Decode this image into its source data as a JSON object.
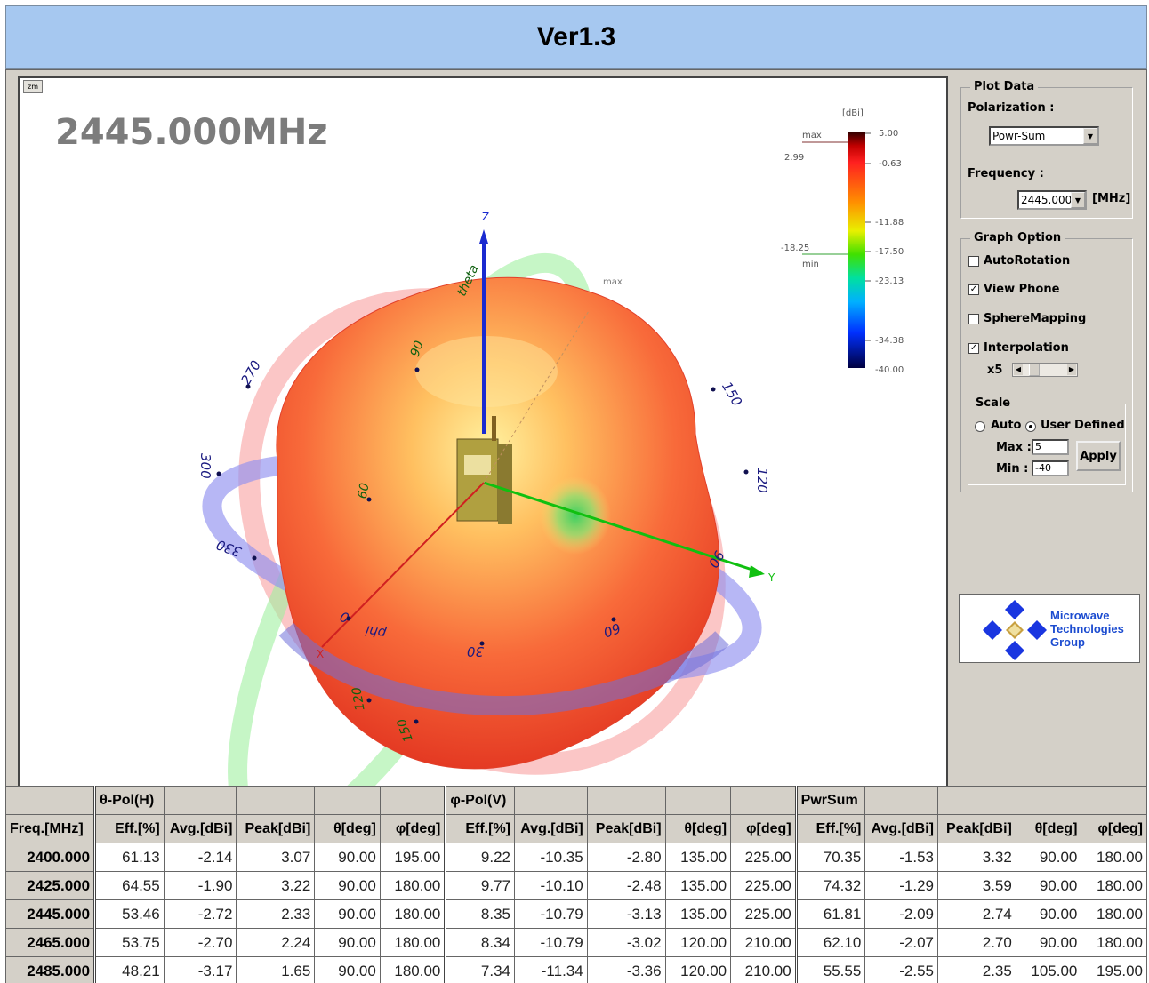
{
  "title": "Ver1.3",
  "plot": {
    "zm_label": "zm",
    "frequency_display": "2445.000MHz",
    "axes": {
      "z": "Z",
      "y": "Y",
      "x": "X"
    },
    "ring_labels": {
      "phi": "phi",
      "theta": "theta",
      "blue": [
        "270",
        "300",
        "330",
        "30",
        "60",
        "90",
        "120",
        "150",
        "0"
      ],
      "green": [
        "90",
        "60",
        "120",
        "150"
      ]
    },
    "max_marker": "max",
    "colorbar": {
      "unit": "[dBi]",
      "ticks": [
        "5.00",
        "-0.63",
        "-11.88",
        "-17.50",
        "-23.13",
        "-34.38",
        "-40.00"
      ],
      "max_label": "max",
      "max_value": "2.99",
      "min_label": "min",
      "min_value": "-18.25"
    }
  },
  "panel": {
    "plot_data": {
      "legend": "Plot Data",
      "polarization_label": "Polarization :",
      "polarization_value": "Powr-Sum",
      "frequency_label": "Frequency :",
      "frequency_value": "2445.000",
      "frequency_unit": "[MHz]"
    },
    "graph_option": {
      "legend": "Graph Option",
      "auto_rotation": {
        "label": "AutoRotation",
        "checked": false
      },
      "view_phone": {
        "label": "View Phone",
        "checked": true
      },
      "sphere_mapping": {
        "label": "SphereMapping",
        "checked": false
      },
      "interpolation": {
        "label": "Interpolation",
        "checked": true
      },
      "interp_factor": "x5"
    },
    "scale": {
      "legend": "Scale",
      "auto_label": "Auto",
      "user_defined_label": "User Defined",
      "max_label": "Max :",
      "max_value": "5",
      "min_label": "Min :",
      "min_value": "-40",
      "apply_label": "Apply"
    },
    "logo": {
      "line1": "Microwave",
      "line2": "Technologies",
      "line3": "Group"
    }
  },
  "table": {
    "group_headers": [
      "θ-Pol(H)",
      "φ-Pol(V)",
      "PwrSum"
    ],
    "columns": [
      "Freq.[MHz]",
      "Eff.[%]",
      "Avg.[dBi]",
      "Peak[dBi]",
      "θ[deg]",
      "φ[deg]",
      "Eff.[%]",
      "Avg.[dBi]",
      "Peak[dBi]",
      "θ[deg]",
      "φ[deg]",
      "Eff.[%]",
      "Avg.[dBi]",
      "Peak[dBi]",
      "θ[deg]",
      "φ[deg]"
    ],
    "rows": [
      [
        "2400.000",
        "61.13",
        "-2.14",
        "3.07",
        "90.00",
        "195.00",
        "9.22",
        "-10.35",
        "-2.80",
        "135.00",
        "225.00",
        "70.35",
        "-1.53",
        "3.32",
        "90.00",
        "180.00"
      ],
      [
        "2425.000",
        "64.55",
        "-1.90",
        "3.22",
        "90.00",
        "180.00",
        "9.77",
        "-10.10",
        "-2.48",
        "135.00",
        "225.00",
        "74.32",
        "-1.29",
        "3.59",
        "90.00",
        "180.00"
      ],
      [
        "2445.000",
        "53.46",
        "-2.72",
        "2.33",
        "90.00",
        "180.00",
        "8.35",
        "-10.79",
        "-3.13",
        "135.00",
        "225.00",
        "61.81",
        "-2.09",
        "2.74",
        "90.00",
        "180.00"
      ],
      [
        "2465.000",
        "53.75",
        "-2.70",
        "2.24",
        "90.00",
        "180.00",
        "8.34",
        "-10.79",
        "-3.02",
        "120.00",
        "210.00",
        "62.10",
        "-2.07",
        "2.70",
        "90.00",
        "180.00"
      ],
      [
        "2485.000",
        "48.21",
        "-3.17",
        "1.65",
        "90.00",
        "180.00",
        "7.34",
        "-11.34",
        "-3.36",
        "120.00",
        "210.00",
        "55.55",
        "-2.55",
        "2.35",
        "105.00",
        "195.00"
      ]
    ]
  }
}
